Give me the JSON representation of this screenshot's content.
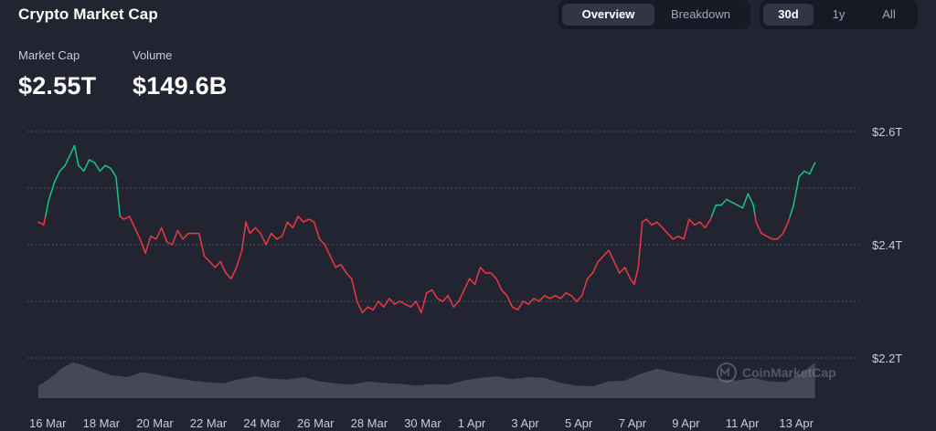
{
  "header": {
    "title": "Crypto Market Cap",
    "view_tabs": [
      {
        "label": "Overview",
        "active": true
      },
      {
        "label": "Breakdown",
        "active": false
      }
    ],
    "range_tabs": [
      {
        "label": "30d",
        "active": true
      },
      {
        "label": "1y",
        "active": false
      },
      {
        "label": "All",
        "active": false
      }
    ]
  },
  "stats": {
    "market_cap": {
      "label": "Market Cap",
      "value": "$2.55T"
    },
    "volume": {
      "label": "Volume",
      "value": "$149.6B"
    }
  },
  "watermark": "CoinMarketCap",
  "colors": {
    "background": "#222531",
    "up": "#16c784",
    "down": "#ea3943",
    "volume": "#4d4f5c"
  },
  "chart_data": {
    "type": "line",
    "title": "",
    "baseline_value": 2.45,
    "ylim": [
      2.2,
      2.6
    ],
    "y_ticks": [
      {
        "value": 2.6,
        "label": "$2.6T"
      },
      {
        "value": 2.4,
        "label": "$2.4T"
      },
      {
        "value": 2.2,
        "label": "$2.2T"
      }
    ],
    "y_grid": [
      2.6,
      2.5,
      2.4,
      2.3,
      2.2
    ],
    "x_ticks": [
      {
        "day": 0,
        "label": "16 Mar"
      },
      {
        "day": 2,
        "label": "18 Mar"
      },
      {
        "day": 4,
        "label": "20 Mar"
      },
      {
        "day": 6,
        "label": "22 Mar"
      },
      {
        "day": 8,
        "label": "24 Mar"
      },
      {
        "day": 10,
        "label": "26 Mar"
      },
      {
        "day": 12,
        "label": "28 Mar"
      },
      {
        "day": 14,
        "label": "30 Mar"
      },
      {
        "day": 16,
        "label": "1 Apr"
      },
      {
        "day": 18,
        "label": "3 Apr"
      },
      {
        "day": 20,
        "label": "5 Apr"
      },
      {
        "day": 22,
        "label": "7 Apr"
      },
      {
        "day": 24,
        "label": "9 Apr"
      },
      {
        "day": 26,
        "label": "11 Apr"
      },
      {
        "day": 28,
        "label": "13 Apr"
      }
    ],
    "series": [
      {
        "unit": "T USD",
        "points": [
          [
            0.1,
            2.44
          ],
          [
            0.3,
            2.435
          ],
          [
            0.5,
            2.48
          ],
          [
            0.7,
            2.51
          ],
          [
            0.9,
            2.53
          ],
          [
            1.1,
            2.54
          ],
          [
            1.3,
            2.56
          ],
          [
            1.45,
            2.575
          ],
          [
            1.6,
            2.54
          ],
          [
            1.8,
            2.53
          ],
          [
            2.0,
            2.55
          ],
          [
            2.2,
            2.545
          ],
          [
            2.4,
            2.53
          ],
          [
            2.6,
            2.54
          ],
          [
            2.8,
            2.535
          ],
          [
            3.0,
            2.52
          ],
          [
            3.15,
            2.45
          ],
          [
            3.3,
            2.445
          ],
          [
            3.5,
            2.45
          ],
          [
            3.7,
            2.43
          ],
          [
            3.9,
            2.41
          ],
          [
            4.1,
            2.385
          ],
          [
            4.3,
            2.415
          ],
          [
            4.5,
            2.41
          ],
          [
            4.7,
            2.43
          ],
          [
            4.9,
            2.405
          ],
          [
            5.1,
            2.4
          ],
          [
            5.3,
            2.425
          ],
          [
            5.5,
            2.41
          ],
          [
            5.7,
            2.42
          ],
          [
            5.9,
            2.42
          ],
          [
            6.1,
            2.42
          ],
          [
            6.3,
            2.38
          ],
          [
            6.5,
            2.37
          ],
          [
            6.7,
            2.36
          ],
          [
            6.9,
            2.37
          ],
          [
            7.1,
            2.35
          ],
          [
            7.3,
            2.34
          ],
          [
            7.5,
            2.36
          ],
          [
            7.7,
            2.39
          ],
          [
            7.85,
            2.44
          ],
          [
            8.0,
            2.42
          ],
          [
            8.2,
            2.43
          ],
          [
            8.4,
            2.42
          ],
          [
            8.6,
            2.4
          ],
          [
            8.8,
            2.42
          ],
          [
            9.0,
            2.41
          ],
          [
            9.2,
            2.415
          ],
          [
            9.4,
            2.44
          ],
          [
            9.6,
            2.43
          ],
          [
            9.8,
            2.45
          ],
          [
            10.0,
            2.44
          ],
          [
            10.2,
            2.445
          ],
          [
            10.4,
            2.44
          ],
          [
            10.6,
            2.41
          ],
          [
            10.8,
            2.4
          ],
          [
            11.0,
            2.38
          ],
          [
            11.2,
            2.36
          ],
          [
            11.4,
            2.365
          ],
          [
            11.6,
            2.35
          ],
          [
            11.8,
            2.34
          ],
          [
            12.0,
            2.3
          ],
          [
            12.2,
            2.28
          ],
          [
            12.4,
            2.29
          ],
          [
            12.6,
            2.285
          ],
          [
            12.8,
            2.3
          ],
          [
            13.0,
            2.29
          ],
          [
            13.2,
            2.305
          ],
          [
            13.4,
            2.295
          ],
          [
            13.6,
            2.3
          ],
          [
            13.8,
            2.295
          ],
          [
            14.0,
            2.29
          ],
          [
            14.2,
            2.3
          ],
          [
            14.4,
            2.28
          ],
          [
            14.6,
            2.315
          ],
          [
            14.8,
            2.32
          ],
          [
            15.0,
            2.305
          ],
          [
            15.2,
            2.3
          ],
          [
            15.4,
            2.31
          ],
          [
            15.6,
            2.29
          ],
          [
            15.8,
            2.3
          ],
          [
            16.0,
            2.32
          ],
          [
            16.2,
            2.34
          ],
          [
            16.4,
            2.33
          ],
          [
            16.6,
            2.36
          ],
          [
            16.8,
            2.35
          ],
          [
            17.0,
            2.35
          ],
          [
            17.2,
            2.34
          ],
          [
            17.4,
            2.32
          ],
          [
            17.6,
            2.31
          ],
          [
            17.8,
            2.29
          ],
          [
            18.0,
            2.285
          ],
          [
            18.2,
            2.3
          ],
          [
            18.4,
            2.295
          ],
          [
            18.6,
            2.305
          ],
          [
            18.8,
            2.3
          ],
          [
            19.0,
            2.31
          ],
          [
            19.2,
            2.305
          ],
          [
            19.4,
            2.31
          ],
          [
            19.6,
            2.305
          ],
          [
            19.8,
            2.315
          ],
          [
            20.0,
            2.31
          ],
          [
            20.2,
            2.3
          ],
          [
            20.4,
            2.31
          ],
          [
            20.6,
            2.34
          ],
          [
            20.8,
            2.35
          ],
          [
            21.0,
            2.37
          ],
          [
            21.2,
            2.38
          ],
          [
            21.4,
            2.39
          ],
          [
            21.6,
            2.37
          ],
          [
            21.8,
            2.35
          ],
          [
            22.0,
            2.36
          ],
          [
            22.2,
            2.34
          ],
          [
            22.35,
            2.33
          ],
          [
            22.5,
            2.36
          ],
          [
            22.65,
            2.44
          ],
          [
            22.8,
            2.445
          ],
          [
            23.0,
            2.435
          ],
          [
            23.2,
            2.44
          ],
          [
            23.4,
            2.43
          ],
          [
            23.6,
            2.42
          ],
          [
            23.8,
            2.41
          ],
          [
            24.0,
            2.415
          ],
          [
            24.2,
            2.41
          ],
          [
            24.4,
            2.445
          ],
          [
            24.6,
            2.435
          ],
          [
            24.8,
            2.44
          ],
          [
            25.0,
            2.43
          ],
          [
            25.2,
            2.445
          ],
          [
            25.4,
            2.47
          ],
          [
            25.6,
            2.47
          ],
          [
            25.8,
            2.48
          ],
          [
            26.0,
            2.475
          ],
          [
            26.2,
            2.47
          ],
          [
            26.4,
            2.465
          ],
          [
            26.6,
            2.49
          ],
          [
            26.8,
            2.47
          ],
          [
            26.9,
            2.44
          ],
          [
            27.1,
            2.42
          ],
          [
            27.3,
            2.415
          ],
          [
            27.5,
            2.41
          ],
          [
            27.7,
            2.41
          ],
          [
            27.9,
            2.42
          ],
          [
            28.1,
            2.44
          ],
          [
            28.3,
            2.47
          ],
          [
            28.5,
            2.52
          ],
          [
            28.7,
            2.53
          ],
          [
            28.9,
            2.525
          ],
          [
            29.1,
            2.545
          ]
        ]
      },
      {
        "name": "Volume",
        "unit": "relative",
        "points": [
          [
            0.1,
            0.3
          ],
          [
            0.5,
            0.45
          ],
          [
            1.0,
            0.72
          ],
          [
            1.4,
            0.85
          ],
          [
            1.8,
            0.78
          ],
          [
            2.2,
            0.68
          ],
          [
            2.8,
            0.55
          ],
          [
            3.4,
            0.5
          ],
          [
            4.0,
            0.62
          ],
          [
            4.6,
            0.55
          ],
          [
            5.2,
            0.48
          ],
          [
            5.8,
            0.42
          ],
          [
            6.4,
            0.38
          ],
          [
            7.0,
            0.35
          ],
          [
            7.6,
            0.45
          ],
          [
            8.2,
            0.52
          ],
          [
            8.8,
            0.46
          ],
          [
            9.4,
            0.44
          ],
          [
            10.0,
            0.5
          ],
          [
            10.6,
            0.4
          ],
          [
            11.2,
            0.35
          ],
          [
            11.8,
            0.32
          ],
          [
            12.4,
            0.4
          ],
          [
            13.0,
            0.36
          ],
          [
            13.6,
            0.34
          ],
          [
            14.2,
            0.3
          ],
          [
            14.8,
            0.33
          ],
          [
            15.4,
            0.32
          ],
          [
            16.0,
            0.42
          ],
          [
            16.6,
            0.48
          ],
          [
            17.2,
            0.52
          ],
          [
            17.8,
            0.45
          ],
          [
            18.4,
            0.5
          ],
          [
            19.0,
            0.48
          ],
          [
            19.6,
            0.36
          ],
          [
            20.2,
            0.3
          ],
          [
            20.8,
            0.28
          ],
          [
            21.4,
            0.4
          ],
          [
            22.0,
            0.42
          ],
          [
            22.6,
            0.58
          ],
          [
            23.2,
            0.7
          ],
          [
            23.8,
            0.62
          ],
          [
            24.4,
            0.55
          ],
          [
            25.0,
            0.5
          ],
          [
            25.6,
            0.45
          ],
          [
            26.2,
            0.42
          ],
          [
            26.8,
            0.48
          ],
          [
            27.4,
            0.4
          ],
          [
            28.0,
            0.38
          ],
          [
            28.6,
            0.6
          ],
          [
            29.1,
            0.85
          ]
        ]
      }
    ]
  }
}
